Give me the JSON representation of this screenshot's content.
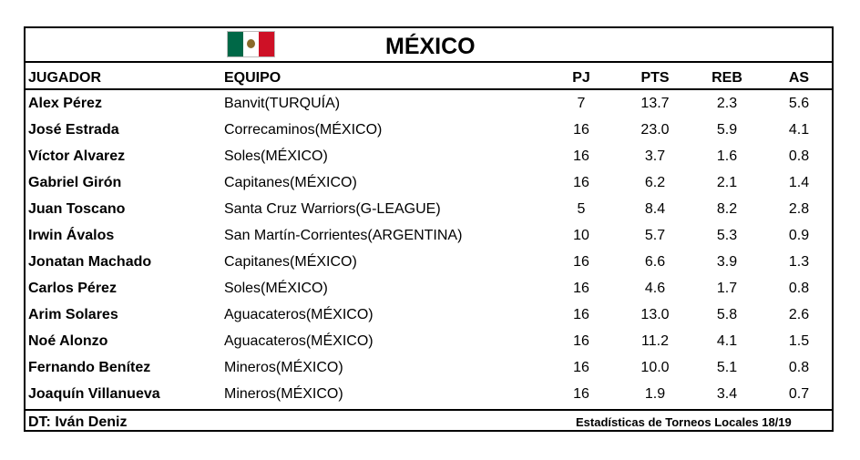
{
  "title": "MÉXICO",
  "flag_colors": {
    "green": "#006847",
    "white": "#ffffff",
    "red": "#ce1126"
  },
  "headers": {
    "player": "JUGADOR",
    "team": "EQUIPO",
    "pj": "PJ",
    "pts": "PTS",
    "reb": "REB",
    "as": "AS"
  },
  "players": [
    {
      "name": "Alex Pérez",
      "team": "Banvit(TURQUÍA)",
      "pj": "7",
      "pts": "13.7",
      "reb": "2.3",
      "as": "5.6"
    },
    {
      "name": "José Estrada",
      "team": "Correcaminos(MÉXICO)",
      "pj": "16",
      "pts": "23.0",
      "reb": "5.9",
      "as": "4.1"
    },
    {
      "name": "Víctor Alvarez",
      "team": "Soles(MÉXICO)",
      "pj": "16",
      "pts": "3.7",
      "reb": "1.6",
      "as": "0.8"
    },
    {
      "name": "Gabriel Girón",
      "team": "Capitanes(MÉXICO)",
      "pj": "16",
      "pts": "6.2",
      "reb": "2.1",
      "as": "1.4"
    },
    {
      "name": "Juan Toscano",
      "team": "Santa Cruz Warriors(G-LEAGUE)",
      "pj": "5",
      "pts": "8.4",
      "reb": "8.2",
      "as": "2.8"
    },
    {
      "name": "Irwin Ávalos",
      "team": "San Martín-Corrientes(ARGENTINA)",
      "pj": "10",
      "pts": "5.7",
      "reb": "5.3",
      "as": "0.9"
    },
    {
      "name": "Jonatan Machado",
      "team": "Capitanes(MÉXICO)",
      "pj": "16",
      "pts": "6.6",
      "reb": "3.9",
      "as": "1.3"
    },
    {
      "name": "Carlos Pérez",
      "team": "Soles(MÉXICO)",
      "pj": "16",
      "pts": "4.6",
      "reb": "1.7",
      "as": "0.8"
    },
    {
      "name": "Arim Solares",
      "team": "Aguacateros(MÉXICO)",
      "pj": "16",
      "pts": "13.0",
      "reb": "5.8",
      "as": "2.6"
    },
    {
      "name": "Noé Alonzo",
      "team": "Aguacateros(MÉXICO)",
      "pj": "16",
      "pts": "11.2",
      "reb": "4.1",
      "as": "1.5"
    },
    {
      "name": "Fernando Benítez",
      "team": "Mineros(MÉXICO)",
      "pj": "16",
      "pts": "10.0",
      "reb": "5.1",
      "as": "0.8"
    },
    {
      "name": "Joaquín Villanueva",
      "team": "Mineros(MÉXICO)",
      "pj": "16",
      "pts": "1.9",
      "reb": "3.4",
      "as": "0.7"
    }
  ],
  "coach": "DT: Iván Deniz",
  "stats_note": "Estadísticas de Torneos Locales 18/19"
}
